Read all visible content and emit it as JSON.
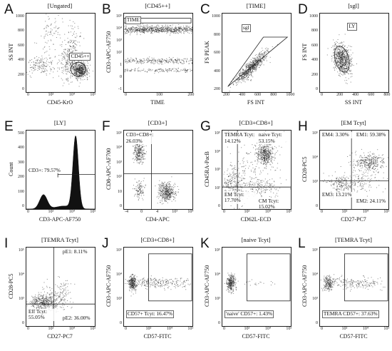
{
  "chart_data": [
    {
      "letter": "A",
      "title": "[Ungated]",
      "type": "scatter",
      "xlabel": "CD45-KrO",
      "ylabel": "SS INT",
      "xticks": [
        "0",
        "10³",
        "10⁴",
        "10⁵"
      ],
      "yticks": [
        "0",
        "200",
        "400",
        "600",
        "800",
        "1000"
      ],
      "gate": {
        "type": "ellipse",
        "label": "CD45++"
      },
      "annotations": []
    },
    {
      "letter": "B",
      "title": "[CD45++]",
      "type": "scatter",
      "xlabel": "TIME",
      "ylabel": "CD3-APC-AF750",
      "xticks": [
        "0",
        "100",
        "200"
      ],
      "yticks": [
        "-1",
        "0",
        "1",
        "10²",
        "10³",
        "10⁴",
        "10⁵"
      ],
      "gate": {
        "type": "rectangle",
        "label": "TIME"
      },
      "annotations": []
    },
    {
      "letter": "C",
      "title": "[TIME]",
      "type": "scatter",
      "xlabel": "FS INT",
      "ylabel": "FS PEAK",
      "xticks": [
        "200",
        "400",
        "600",
        "800",
        "1000"
      ],
      "yticks": [
        "200",
        "400",
        "600",
        "800",
        "1000"
      ],
      "gate": {
        "type": "polygon",
        "label": "sgl"
      },
      "annotations": []
    },
    {
      "letter": "D",
      "title": "[sgl]",
      "type": "scatter",
      "xlabel": "SS INT",
      "ylabel": "FS INT",
      "xticks": [
        "0",
        "200",
        "400",
        "600",
        "800"
      ],
      "yticks": [
        "0",
        "200",
        "400",
        "600",
        "800",
        "1000"
      ],
      "gate": {
        "type": "ellipse",
        "label": "LY"
      },
      "annotations": []
    },
    {
      "letter": "E",
      "title": "[LY]",
      "type": "histogram",
      "xlabel": "CD3-APC-AF750",
      "ylabel": "Count",
      "xticks": [
        "0",
        "10³",
        "10⁴",
        "10⁵"
      ],
      "yticks": [
        "0",
        "100",
        "200",
        "300",
        "400",
        "500"
      ],
      "gate": {
        "type": "range",
        "label": "CD3+: 79.57%"
      },
      "annotations": []
    },
    {
      "letter": "F",
      "title": "[CD3+]",
      "type": "scatter",
      "xlabel": "CD4-APC",
      "ylabel": "CD8-APC-AF700",
      "xticks": [
        "-4",
        "0",
        "4",
        "10³",
        "10⁴"
      ],
      "yticks": [
        "0",
        "10",
        "10²",
        "10³",
        "10⁴",
        "10⁵"
      ],
      "gate": {
        "type": "quadrant",
        "label": ""
      },
      "annotations": [
        {
          "text": "CD3+CD8+: 26.03%",
          "pos": "top-left"
        }
      ]
    },
    {
      "letter": "G",
      "title": "[CD3+CD8+]",
      "type": "scatter",
      "xlabel": "CD62L-ECD",
      "ylabel": "CD45RA-PacB",
      "xticks": [
        "0",
        "10³",
        "10⁴",
        "10⁵"
      ],
      "yticks": [
        "0",
        "10²",
        "10³",
        "10⁴",
        "10⁵"
      ],
      "gate": {
        "type": "quadrant",
        "label": ""
      },
      "annotations": [
        {
          "text": "TEMRA Tcyt: 14.12%",
          "pos": "top-left"
        },
        {
          "text": "naive Tcyt: 53.15%",
          "pos": "top-right"
        },
        {
          "text": "EM Tcyt: 17.70%",
          "pos": "bottom-left"
        },
        {
          "text": "CM Tcyt: 15.02%",
          "pos": "bottom-right"
        }
      ]
    },
    {
      "letter": "H",
      "title": "[EM Tcyt]",
      "type": "scatter",
      "xlabel": "CD27-PC7",
      "ylabel": "CD28-PC5",
      "xticks": [
        "0",
        "10³",
        "10⁴",
        "10⁵"
      ],
      "yticks": [
        "0",
        "10³",
        "10⁴",
        "10⁵"
      ],
      "gate": {
        "type": "quadrant",
        "label": ""
      },
      "annotations": [
        {
          "text": "EM4: 3.30%",
          "pos": "top-left"
        },
        {
          "text": "EM1: 59.38%",
          "pos": "top-right"
        },
        {
          "text": "EM3: 13.21%",
          "pos": "bottom-left"
        },
        {
          "text": "EM2: 24.11%",
          "pos": "bottom-right"
        }
      ]
    },
    {
      "letter": "I",
      "title": "[TEMRA Tcyt]",
      "type": "scatter",
      "xlabel": "CD27-PC7",
      "ylabel": "CD28-PC5",
      "xticks": [
        "0",
        "10³",
        "10⁴",
        "10⁵"
      ],
      "yticks": [
        "0",
        "10³",
        "10⁴",
        "10⁵"
      ],
      "gate": {
        "type": "quadrant",
        "label": ""
      },
      "annotations": [
        {
          "text": "pE1: 8.11%",
          "pos": "top-right"
        },
        {
          "text": "Eff Tcyt: 55.05%",
          "pos": "bottom-left"
        },
        {
          "text": "pE2: 36.00%",
          "pos": "bottom-right"
        }
      ]
    },
    {
      "letter": "J",
      "title": "[CD3+CD8+]",
      "type": "scatter",
      "xlabel": "CD57-FITC",
      "ylabel": "CD3-APC-AF750",
      "xticks": [
        "0",
        "10³",
        "10⁴",
        "10⁵"
      ],
      "yticks": [
        "0",
        "10³",
        "10⁴",
        "10⁵"
      ],
      "gate": {
        "type": "rectangle",
        "label": "CD57+ Tcyt: 16.47%"
      },
      "annotations": []
    },
    {
      "letter": "K",
      "title": "[naive Tcyt]",
      "type": "scatter",
      "xlabel": "CD57-FITC",
      "ylabel": "CD3-APC-AF750",
      "xticks": [
        "0",
        "10³",
        "10⁴",
        "10⁵"
      ],
      "yticks": [
        "0",
        "10³",
        "10⁴",
        "10⁵"
      ],
      "gate": {
        "type": "rectangle",
        "label": "'naive' CD57+: 1.43%"
      },
      "annotations": []
    },
    {
      "letter": "L",
      "title": "[TEMRA Tcyt]",
      "type": "scatter",
      "xlabel": "CD57-FITC",
      "ylabel": "CD3-APC-AF750",
      "xticks": [
        "0",
        "10³",
        "10⁴",
        "10⁵"
      ],
      "yticks": [
        "0",
        "10³",
        "10⁴",
        "10⁵"
      ],
      "gate": {
        "type": "rectangle",
        "label": "TEMRA CD57+: 37.63%"
      },
      "annotations": []
    }
  ],
  "colors": {
    "ink": "#111111",
    "dots": "#222222"
  }
}
